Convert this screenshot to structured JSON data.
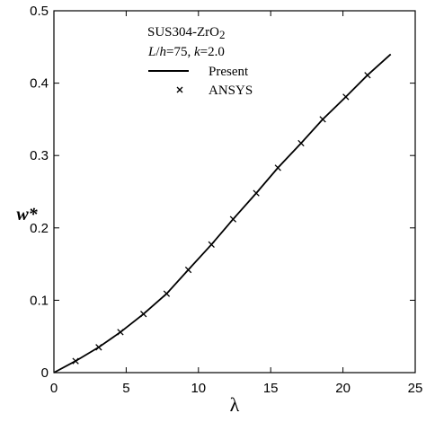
{
  "chart_data": {
    "type": "line",
    "title": "",
    "xlabel": "λ",
    "ylabel": "w*",
    "xlim": [
      0,
      25
    ],
    "ylim": [
      0,
      0.5
    ],
    "xticks": [
      0,
      5,
      10,
      15,
      20,
      25
    ],
    "yticks": [
      0,
      0.1,
      0.2,
      0.3,
      0.4,
      0.5
    ],
    "xtick_labels": [
      "0",
      "5",
      "10",
      "15",
      "20",
      "25"
    ],
    "ytick_labels": [
      "0",
      "0.1",
      "0.2",
      "0.3",
      "0.4",
      "0.5"
    ],
    "grid": false,
    "legend_position": "top-center",
    "annotation": {
      "material": "SUS304-ZrO",
      "material_subscript": "2",
      "params_L": "L",
      "params_slash": "/",
      "params_h": "h",
      "params_mid": "=75, ",
      "params_k": "k",
      "params_end": "=2.0"
    },
    "series": [
      {
        "name": "Present",
        "style": "solid-line",
        "color": "#000000",
        "x": [
          0,
          1.5,
          3.1,
          4.6,
          6.2,
          7.8,
          9.3,
          10.9,
          12.4,
          14.0,
          15.5,
          17.1,
          18.6,
          20.2,
          21.7,
          23.3
        ],
        "y": [
          0,
          0.016,
          0.035,
          0.056,
          0.081,
          0.109,
          0.142,
          0.177,
          0.212,
          0.248,
          0.283,
          0.317,
          0.35,
          0.381,
          0.411,
          0.44
        ]
      },
      {
        "name": "ANSYS",
        "style": "x-marker",
        "color": "#000000",
        "x": [
          1.5,
          3.1,
          4.6,
          6.2,
          7.8,
          9.3,
          10.9,
          12.4,
          14.0,
          15.5,
          17.1,
          18.6,
          20.2,
          21.7
        ],
        "y": [
          0.016,
          0.035,
          0.056,
          0.081,
          0.109,
          0.142,
          0.177,
          0.212,
          0.248,
          0.283,
          0.317,
          0.35,
          0.381,
          0.411
        ]
      }
    ]
  }
}
